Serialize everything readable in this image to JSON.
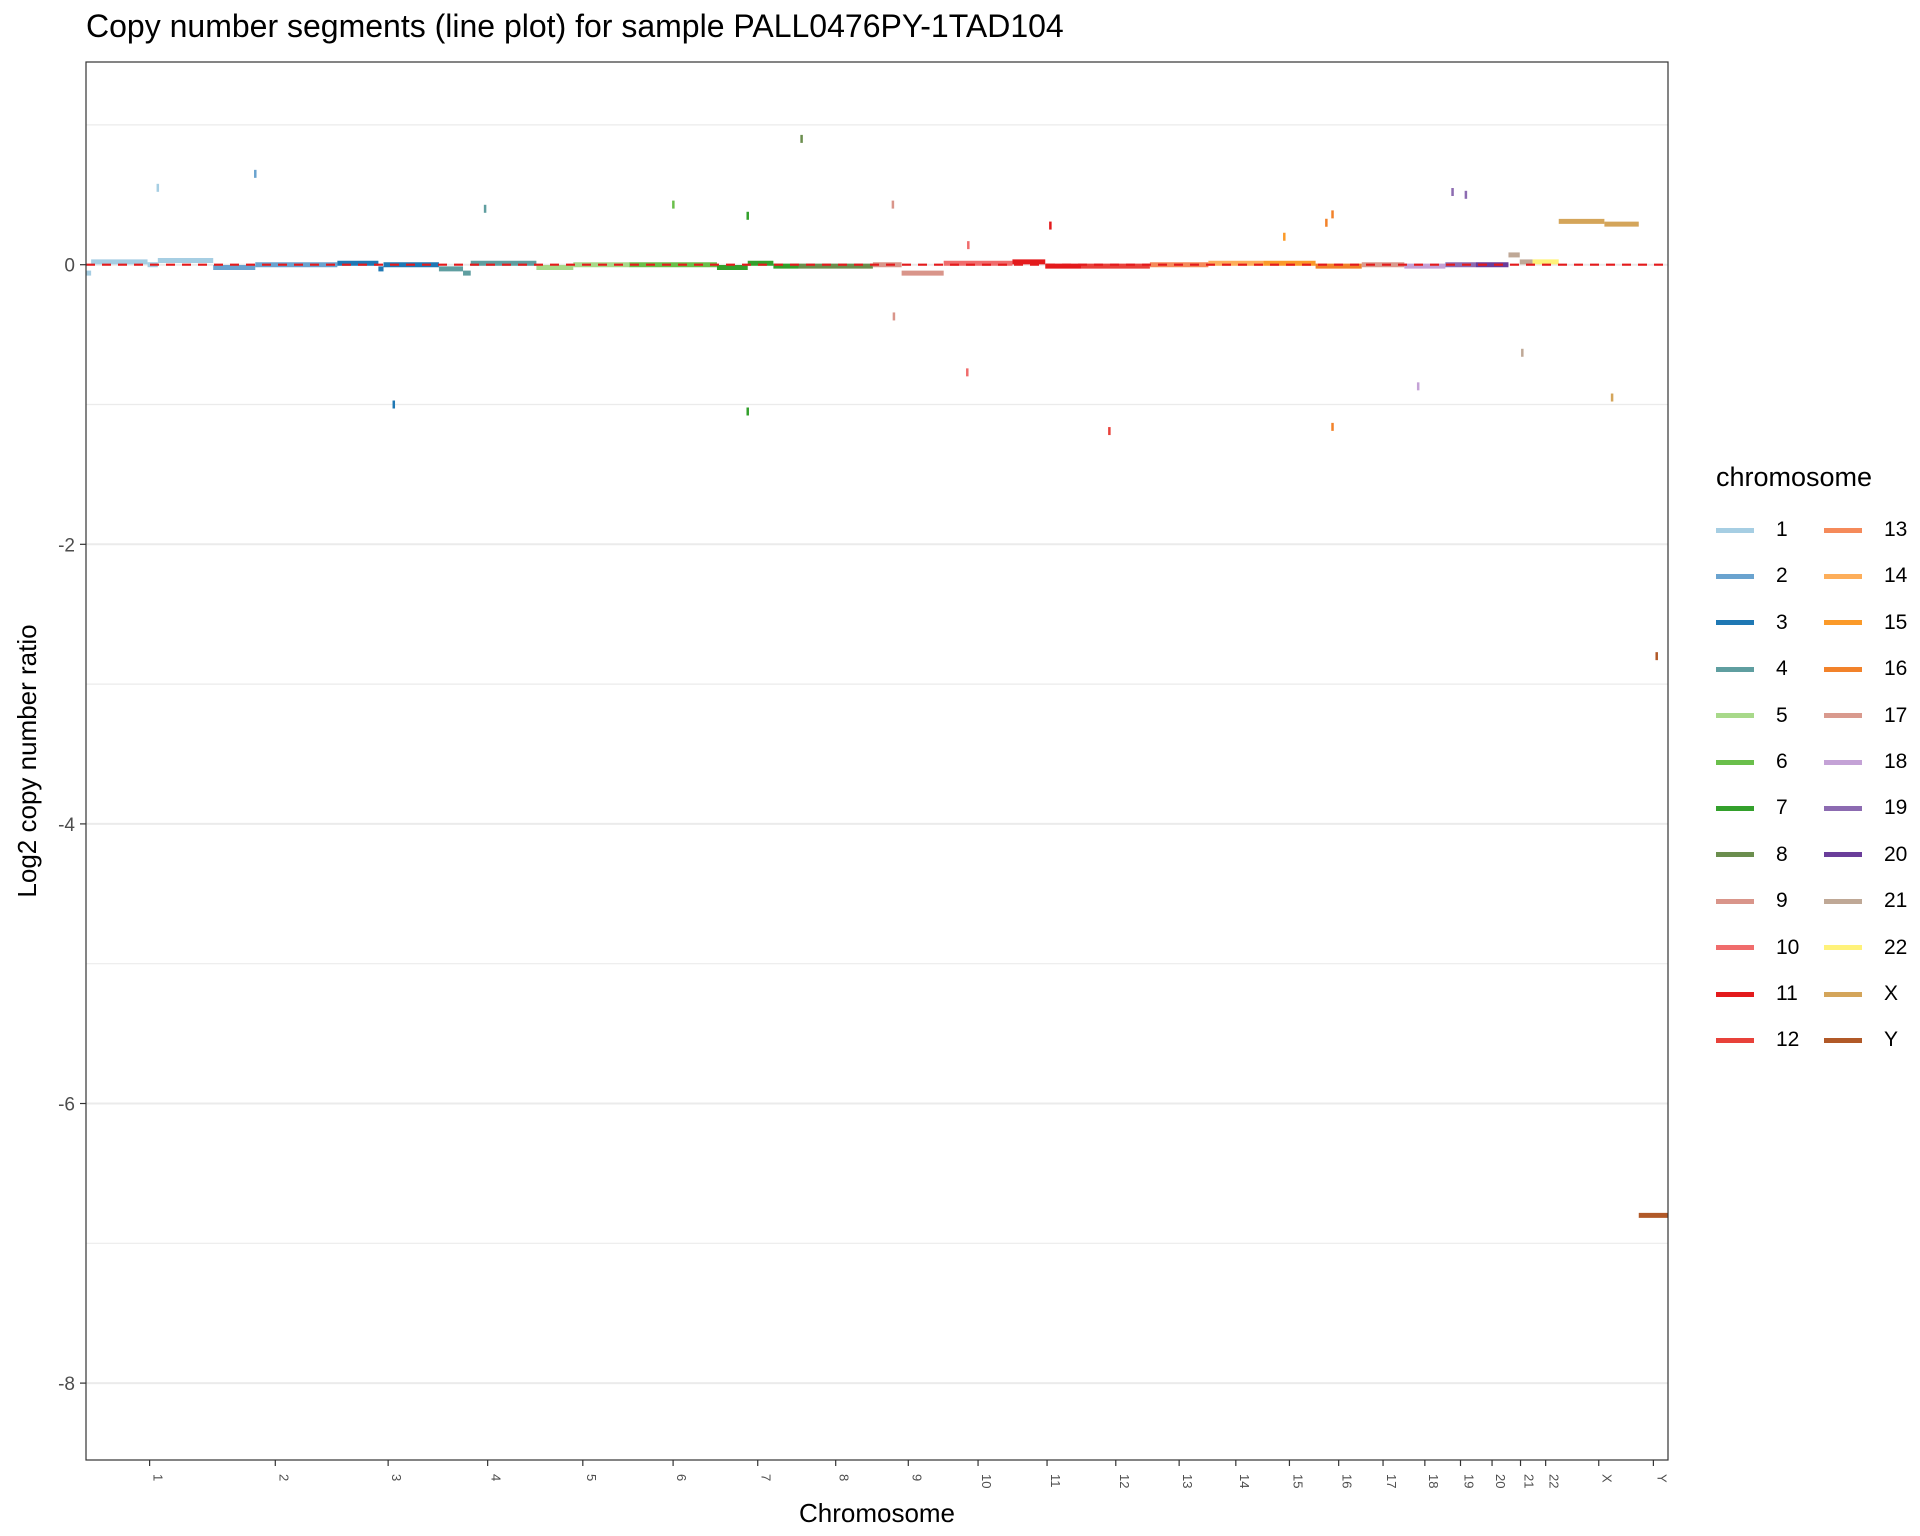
{
  "chart_data": {
    "type": "line",
    "title": "Copy number segments (line plot) for sample PALL0476PY-1TAD104",
    "xlabel": "Chromosome",
    "ylabel": "Log2 copy number ratio",
    "ylim": [
      -8.55,
      1.45
    ],
    "y_ticks": [
      0,
      -2,
      -4,
      -6,
      -8
    ],
    "grid": "horizontal",
    "reference_line": {
      "y": 0,
      "style": "dashed",
      "color": "#e41a1c"
    },
    "legend": {
      "title": "chromosome",
      "placement": "right"
    },
    "chromosomes": [
      {
        "name": "1",
        "color": "#a6cee3",
        "start": 0,
        "end": 248
      },
      {
        "name": "2",
        "color": "#6aa3cf",
        "start": 248,
        "end": 490
      },
      {
        "name": "3",
        "color": "#1f78b4",
        "start": 490,
        "end": 688
      },
      {
        "name": "4",
        "color": "#5f9ea0",
        "start": 688,
        "end": 878
      },
      {
        "name": "5",
        "color": "#a8d98a",
        "start": 878,
        "end": 1059
      },
      {
        "name": "6",
        "color": "#6abf4b",
        "start": 1059,
        "end": 1230
      },
      {
        "name": "7",
        "color": "#33a02c",
        "start": 1230,
        "end": 1389
      },
      {
        "name": "8",
        "color": "#6b8e4e",
        "start": 1389,
        "end": 1534
      },
      {
        "name": "9",
        "color": "#d9958a",
        "start": 1534,
        "end": 1672
      },
      {
        "name": "10",
        "color": "#f06c6c",
        "start": 1672,
        "end": 1806
      },
      {
        "name": "11",
        "color": "#e31a1c",
        "start": 1806,
        "end": 1941
      },
      {
        "name": "12",
        "color": "#e8413a",
        "start": 1941,
        "end": 2074
      },
      {
        "name": "13",
        "color": "#f58a5a",
        "start": 2074,
        "end": 2188
      },
      {
        "name": "14",
        "color": "#fdae5a",
        "start": 2188,
        "end": 2295
      },
      {
        "name": "15",
        "color": "#fb9a29",
        "start": 2295,
        "end": 2397
      },
      {
        "name": "16",
        "color": "#f2822a",
        "start": 2397,
        "end": 2487
      },
      {
        "name": "17",
        "color": "#d99a8e",
        "start": 2487,
        "end": 2570
      },
      {
        "name": "18",
        "color": "#c4a2d6",
        "start": 2570,
        "end": 2650
      },
      {
        "name": "19",
        "color": "#8c6bb1",
        "start": 2650,
        "end": 2709
      },
      {
        "name": "20",
        "color": "#6a3d9a",
        "start": 2709,
        "end": 2773
      },
      {
        "name": "21",
        "color": "#bfa896",
        "start": 2773,
        "end": 2820
      },
      {
        "name": "22",
        "color": "#fff27a",
        "start": 2820,
        "end": 2871
      },
      {
        "name": "X",
        "color": "#d4a55a",
        "start": 2871,
        "end": 3027
      },
      {
        "name": "Y",
        "color": "#b15928",
        "start": 3027,
        "end": 3084
      }
    ],
    "segments": [
      {
        "chr": "1",
        "start": 0,
        "end": 10,
        "value": -0.06
      },
      {
        "chr": "1",
        "start": 10,
        "end": 120,
        "value": 0.02
      },
      {
        "chr": "1",
        "start": 120,
        "end": 140,
        "value": 0.0
      },
      {
        "chr": "1",
        "start": 140,
        "end": 248,
        "value": 0.03
      },
      {
        "chr": "2",
        "start": 248,
        "end": 330,
        "value": -0.02
      },
      {
        "chr": "2",
        "start": 330,
        "end": 490,
        "value": 0.0
      },
      {
        "chr": "3",
        "start": 490,
        "end": 570,
        "value": 0.01
      },
      {
        "chr": "3",
        "start": 570,
        "end": 580,
        "value": -0.03
      },
      {
        "chr": "3",
        "start": 580,
        "end": 688,
        "value": 0.0
      },
      {
        "chr": "4",
        "start": 688,
        "end": 735,
        "value": -0.03
      },
      {
        "chr": "4",
        "start": 735,
        "end": 750,
        "value": -0.06
      },
      {
        "chr": "4",
        "start": 750,
        "end": 878,
        "value": 0.01
      },
      {
        "chr": "5",
        "start": 878,
        "end": 950,
        "value": -0.02
      },
      {
        "chr": "5",
        "start": 950,
        "end": 1059,
        "value": 0.0
      },
      {
        "chr": "6",
        "start": 1059,
        "end": 1230,
        "value": 0.0
      },
      {
        "chr": "7",
        "start": 1230,
        "end": 1290,
        "value": -0.02
      },
      {
        "chr": "7",
        "start": 1290,
        "end": 1340,
        "value": 0.01
      },
      {
        "chr": "7",
        "start": 1340,
        "end": 1389,
        "value": -0.01
      },
      {
        "chr": "8",
        "start": 1389,
        "end": 1534,
        "value": -0.01
      },
      {
        "chr": "9",
        "start": 1534,
        "end": 1590,
        "value": 0.0
      },
      {
        "chr": "9",
        "start": 1590,
        "end": 1672,
        "value": -0.06
      },
      {
        "chr": "10",
        "start": 1672,
        "end": 1806,
        "value": 0.01
      },
      {
        "chr": "11",
        "start": 1806,
        "end": 1870,
        "value": 0.02
      },
      {
        "chr": "11",
        "start": 1870,
        "end": 1941,
        "value": -0.01
      },
      {
        "chr": "12",
        "start": 1941,
        "end": 2074,
        "value": -0.01
      },
      {
        "chr": "13",
        "start": 2074,
        "end": 2188,
        "value": 0.0
      },
      {
        "chr": "14",
        "start": 2188,
        "end": 2295,
        "value": 0.01
      },
      {
        "chr": "15",
        "start": 2295,
        "end": 2397,
        "value": 0.01
      },
      {
        "chr": "16",
        "start": 2397,
        "end": 2487,
        "value": -0.01
      },
      {
        "chr": "17",
        "start": 2487,
        "end": 2570,
        "value": 0.0
      },
      {
        "chr": "18",
        "start": 2570,
        "end": 2650,
        "value": -0.01
      },
      {
        "chr": "19",
        "start": 2650,
        "end": 2709,
        "value": 0.0
      },
      {
        "chr": "20",
        "start": 2709,
        "end": 2773,
        "value": 0.0
      },
      {
        "chr": "21",
        "start": 2773,
        "end": 2795,
        "value": 0.07
      },
      {
        "chr": "21",
        "start": 2795,
        "end": 2820,
        "value": 0.02
      },
      {
        "chr": "22",
        "start": 2820,
        "end": 2871,
        "value": 0.02
      },
      {
        "chr": "X",
        "start": 2871,
        "end": 2960,
        "value": 0.31
      },
      {
        "chr": "X",
        "start": 2960,
        "end": 3027,
        "value": 0.29
      },
      {
        "chr": "Y",
        "start": 3027,
        "end": 3084,
        "value": -6.8
      }
    ],
    "outliers": [
      {
        "chr": "1",
        "pos": 140,
        "value": 0.55
      },
      {
        "chr": "2",
        "pos": 330,
        "value": 0.65
      },
      {
        "chr": "3",
        "pos": 600,
        "value": -1.0
      },
      {
        "chr": "4",
        "pos": 778,
        "value": 0.4
      },
      {
        "chr": "6",
        "pos": 1145,
        "value": 0.43
      },
      {
        "chr": "7",
        "pos": 1290,
        "value": -1.05
      },
      {
        "chr": "7",
        "pos": 1290,
        "value": 0.35
      },
      {
        "chr": "8",
        "pos": 1395,
        "value": 0.9
      },
      {
        "chr": "9",
        "pos": 1573,
        "value": 0.43
      },
      {
        "chr": "9",
        "pos": 1575,
        "value": -0.37
      },
      {
        "chr": "10",
        "pos": 1718,
        "value": -0.77
      },
      {
        "chr": "10",
        "pos": 1720,
        "value": 0.14
      },
      {
        "chr": "11",
        "pos": 1880,
        "value": 0.28
      },
      {
        "chr": "12",
        "pos": 1995,
        "value": -1.19
      },
      {
        "chr": "15",
        "pos": 2336,
        "value": 0.2
      },
      {
        "chr": "16",
        "pos": 2418,
        "value": 0.3
      },
      {
        "chr": "16",
        "pos": 2430,
        "value": -1.16
      },
      {
        "chr": "16",
        "pos": 2430,
        "value": 0.36
      },
      {
        "chr": "18",
        "pos": 2597,
        "value": -0.87
      },
      {
        "chr": "19",
        "pos": 2664,
        "value": 0.52
      },
      {
        "chr": "19",
        "pos": 2690,
        "value": 0.5
      },
      {
        "chr": "21",
        "pos": 2800,
        "value": -0.63
      },
      {
        "chr": "X",
        "pos": 2975,
        "value": -0.95
      },
      {
        "chr": "Y",
        "pos": 3062,
        "value": -2.8
      }
    ]
  }
}
